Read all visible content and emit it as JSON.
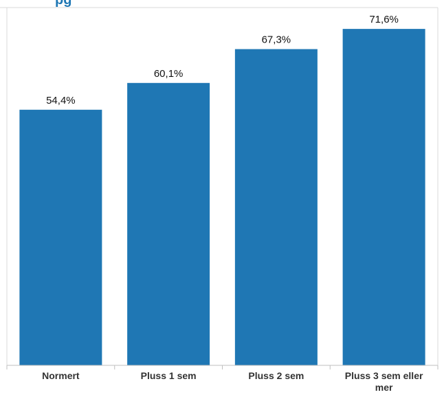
{
  "header": {
    "title_fragment": "pg"
  },
  "colors": {
    "bar": "#1f77b4",
    "axis": "#bfbfbf",
    "frame": "#d9d9d9"
  },
  "chart_data": {
    "type": "bar",
    "title": "",
    "xlabel": "",
    "ylabel": "",
    "grid": false,
    "ylim": [
      0,
      76
    ],
    "categories": [
      [
        "Normert"
      ],
      [
        "Pluss 1 sem"
      ],
      [
        "Pluss 2 sem"
      ],
      [
        "Pluss 3 sem eller",
        "mer"
      ]
    ],
    "values": [
      54.4,
      60.1,
      67.3,
      71.6
    ],
    "data_labels": [
      "54,4%",
      "60,1%",
      "67,3%",
      "71,6%"
    ]
  }
}
